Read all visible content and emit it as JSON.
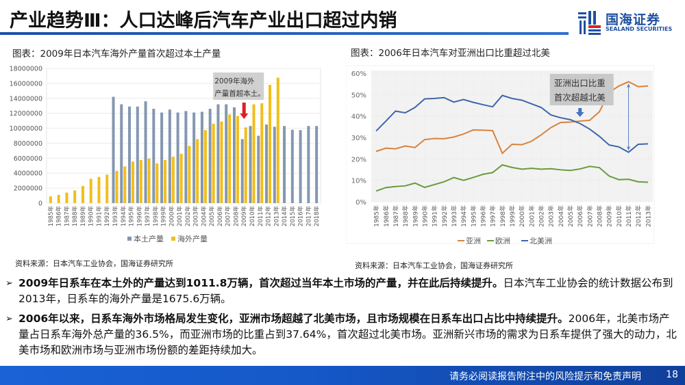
{
  "header": {
    "title": "产业趋势Ⅲ：人口达峰后汽车产业出口超过内销",
    "logo_cn": "国海证券",
    "logo_en": "SEALAND SECURITIES"
  },
  "left_panel": {
    "title": "图表：2009年日本汽车海外产量首次超过本土产量",
    "source": "资料来源：日本汽车工业协会，国海证券研究所"
  },
  "right_panel": {
    "title": "图表：2006年日本汽车对亚洲出口比重超过北美",
    "source": "资料来源：日本汽车工业协会，国海证券研究所"
  },
  "colors": {
    "domestic": "#8497b0",
    "overseas": "#f2be1a",
    "asia": "#d9823b",
    "europe": "#6a9a3a",
    "north_america": "#3f64a8",
    "annotation_arrow_red": "#e02020",
    "annotation_arrow_blue": "#4472c4"
  },
  "chart_data": [
    {
      "type": "bar",
      "title": "2009年日本汽车海外产量首次超过本土产量",
      "categories": [
        "1985年",
        "1986年",
        "1987年",
        "1988年",
        "1989年",
        "1990年",
        "1991年",
        "1992年",
        "1993年",
        "1994年",
        "1995年",
        "1996年",
        "1997年",
        "1998年",
        "1999年",
        "2000年",
        "2001年",
        "2002年",
        "2003年",
        "2004年",
        "2005年",
        "2006年",
        "2007年",
        "2008年",
        "2009年",
        "2010年",
        "2011年",
        "2012年",
        "2013年",
        "2014年",
        "2015年",
        "2016年",
        "2017年",
        "2018年"
      ],
      "ylim": [
        0,
        18000000
      ],
      "yticks": [
        "0",
        "2000000",
        "4000000",
        "6000000",
        "8000000",
        "10000000",
        "12000000",
        "14000000",
        "16000000",
        "18000000"
      ],
      "grid": true,
      "legend": "bottom",
      "series": [
        {
          "name": "本土产量",
          "values": [
            null,
            null,
            null,
            null,
            null,
            null,
            null,
            null,
            14200000,
            13200000,
            12900000,
            12900000,
            13600000,
            12600000,
            12100000,
            12500000,
            12100000,
            12300000,
            12100000,
            12200000,
            12600000,
            13200000,
            13200000,
            12800000,
            8550000,
            10300000,
            9000000,
            10500000,
            10200000,
            10300000,
            9800000,
            9750000,
            10300000,
            10300000
          ]
        },
        {
          "name": "海外产量",
          "values": [
            900000,
            1100000,
            1400000,
            1700000,
            2300000,
            3250000,
            3500000,
            3800000,
            4300000,
            4900000,
            5550000,
            5750000,
            5950000,
            5300000,
            5750000,
            6200000,
            6600000,
            7650000,
            8550000,
            9750000,
            10600000,
            10900000,
            11850000,
            11650000,
            10118000,
            13200000,
            13350000,
            15800000,
            16756000,
            null,
            null,
            null,
            null,
            null
          ]
        }
      ],
      "annotation": "2009年海外产量首超本土。"
    },
    {
      "type": "line",
      "title": "2006年日本汽车对亚洲出口比重超过北美",
      "categories": [
        "1985年",
        "1986年",
        "1987年",
        "1988年",
        "1989年",
        "1990年",
        "1991年",
        "1992年",
        "1993年",
        "1994年",
        "1995年",
        "1996年",
        "1997年",
        "1998年",
        "1999年",
        "2000年",
        "2001年",
        "2002年",
        "2003年",
        "2004年",
        "2005年",
        "2006年",
        "2007年",
        "2008年",
        "2009年",
        "2010年",
        "2011年",
        "2012年",
        "2013年"
      ],
      "ylim": [
        0,
        60
      ],
      "yticks": [
        "0%",
        "10%",
        "20%",
        "30%",
        "40%",
        "50%",
        "60%"
      ],
      "grid": true,
      "legend": "bottom",
      "series": [
        {
          "name": "亚洲",
          "values": [
            23.5,
            25.0,
            24.7,
            26.0,
            25.3,
            29.0,
            29.5,
            29.4,
            30.2,
            31.6,
            33.5,
            33.4,
            33.2,
            22.6,
            26.8,
            26.6,
            28.2,
            31.2,
            34.6,
            37.0,
            37.2,
            37.64,
            38.0,
            42.0,
            51.0,
            54.0,
            56.0,
            53.7,
            54.0
          ]
        },
        {
          "name": "欧洲",
          "values": [
            5.0,
            6.6,
            7.1,
            7.4,
            8.7,
            6.7,
            8.0,
            9.3,
            11.3,
            10.0,
            11.3,
            12.8,
            13.6,
            17.2,
            16.0,
            15.2,
            15.6,
            15.2,
            15.4,
            14.9,
            14.6,
            15.3,
            16.5,
            15.9,
            12.0,
            10.3,
            10.5,
            9.3,
            9.1
          ]
        },
        {
          "name": "北美洲",
          "values": [
            33.0,
            37.6,
            42.3,
            41.5,
            44.0,
            48.0,
            48.2,
            48.6,
            46.5,
            47.7,
            46.4,
            45.3,
            44.3,
            49.6,
            48.2,
            47.4,
            45.7,
            44.0,
            40.5,
            39.2,
            38.3,
            36.5,
            33.9,
            30.5,
            26.5,
            25.6,
            23.1,
            26.8,
            27.0
          ]
        }
      ],
      "annotation": "亚洲出口比重首次超越北美"
    }
  ],
  "bullets": [
    {
      "bold": "2009年日系车在本土外的产量达到1011.8万辆，首次超过当年本土市场的产量，并在此后持续提升。",
      "normal": "日本汽车工业协会的统计数据公布到2013年，日系车的海外产量是1675.6万辆。"
    },
    {
      "bold": "2006年以来，日系车海外市场格局发生变化，亚洲市场超越了北美市场，且市场规模在日系车出口占比中持续提升。",
      "normal": "2006年，北美市场产量占日系车海外总产量的36.5%，而亚洲市场的比重占到37.64%，首次超过北美市场。亚洲新兴市场的需求为日系车提供了强大的动力，北美市场和欧洲市场与亚洲市场份额的差距持续加大。"
    }
  ],
  "footer": {
    "disclaimer": "请务必阅读报告附注中的风险提示和免责声明",
    "page": "18"
  }
}
